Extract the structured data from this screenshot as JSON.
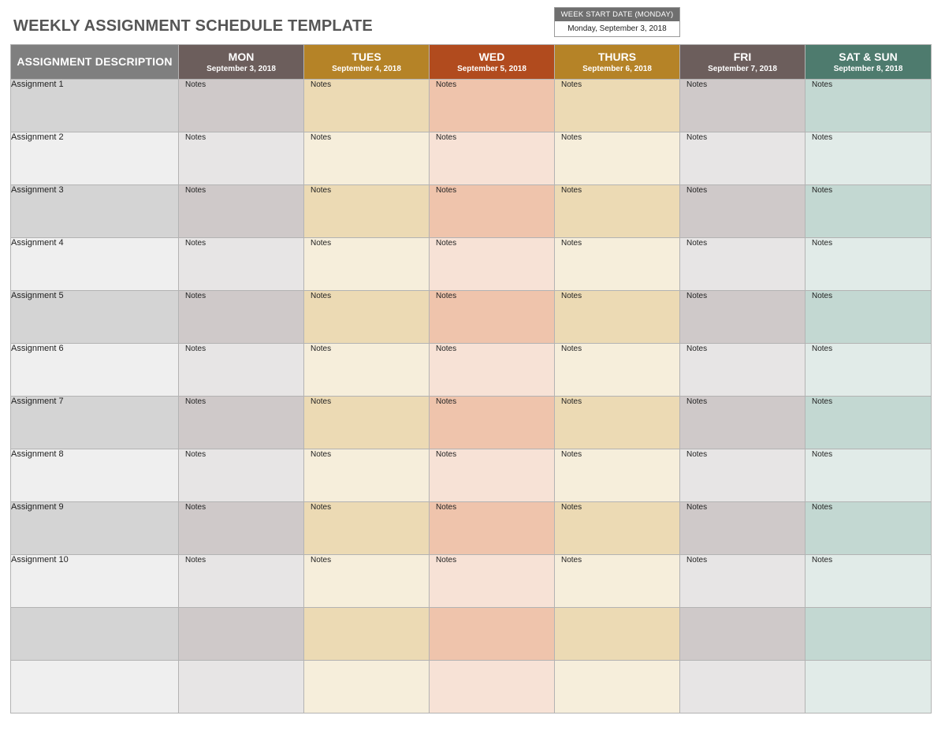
{
  "title": "WEEKLY ASSIGNMENT SCHEDULE TEMPLATE",
  "week_start": {
    "label": "WEEK START DATE (MONDAY)",
    "value": "Monday, September 3, 2018"
  },
  "table": {
    "desc_header": "ASSIGNMENT DESCRIPTION",
    "days": [
      {
        "name": "MON",
        "date": "September 3, 2018"
      },
      {
        "name": "TUES",
        "date": "September 4, 2018"
      },
      {
        "name": "WED",
        "date": "September 5, 2018"
      },
      {
        "name": "THURS",
        "date": "September 6, 2018"
      },
      {
        "name": "FRI",
        "date": "September 7, 2018"
      },
      {
        "name": "SAT & SUN",
        "date": "September 8, 2018"
      }
    ],
    "rows": [
      {
        "label": "Assignment 1",
        "notes": [
          "Notes",
          "Notes",
          "Notes",
          "Notes",
          "Notes",
          "Notes"
        ]
      },
      {
        "label": "Assignment 2",
        "notes": [
          "Notes",
          "Notes",
          "Notes",
          "Notes",
          "Notes",
          "Notes"
        ]
      },
      {
        "label": "Assignment 3",
        "notes": [
          "Notes",
          "Notes",
          "Notes",
          "Notes",
          "Notes",
          "Notes"
        ]
      },
      {
        "label": "Assignment 4",
        "notes": [
          "Notes",
          "Notes",
          "Notes",
          "Notes",
          "Notes",
          "Notes"
        ]
      },
      {
        "label": "Assignment 5",
        "notes": [
          "Notes",
          "Notes",
          "Notes",
          "Notes",
          "Notes",
          "Notes"
        ]
      },
      {
        "label": "Assignment 6",
        "notes": [
          "Notes",
          "Notes",
          "Notes",
          "Notes",
          "Notes",
          "Notes"
        ]
      },
      {
        "label": "Assignment 7",
        "notes": [
          "Notes",
          "Notes",
          "Notes",
          "Notes",
          "Notes",
          "Notes"
        ]
      },
      {
        "label": "Assignment 8",
        "notes": [
          "Notes",
          "Notes",
          "Notes",
          "Notes",
          "Notes",
          "Notes"
        ]
      },
      {
        "label": "Assignment 9",
        "notes": [
          "Notes",
          "Notes",
          "Notes",
          "Notes",
          "Notes",
          "Notes"
        ]
      },
      {
        "label": "Assignment 10",
        "notes": [
          "Notes",
          "Notes",
          "Notes",
          "Notes",
          "Notes",
          "Notes"
        ]
      },
      {
        "label": "",
        "notes": [
          "",
          "",
          "",
          "",
          "",
          ""
        ]
      },
      {
        "label": "",
        "notes": [
          "",
          "",
          "",
          "",
          "",
          ""
        ]
      }
    ]
  },
  "colors": {
    "title": "#555555",
    "desc_header": "#7f7f7f",
    "mon_header": "#6c5e5c",
    "tues_header": "#b58327",
    "wed_header": "#b14b1e",
    "thurs_header": "#b58327",
    "fri_header": "#6c5e5c",
    "sat_sun_header": "#4e7b6e"
  }
}
